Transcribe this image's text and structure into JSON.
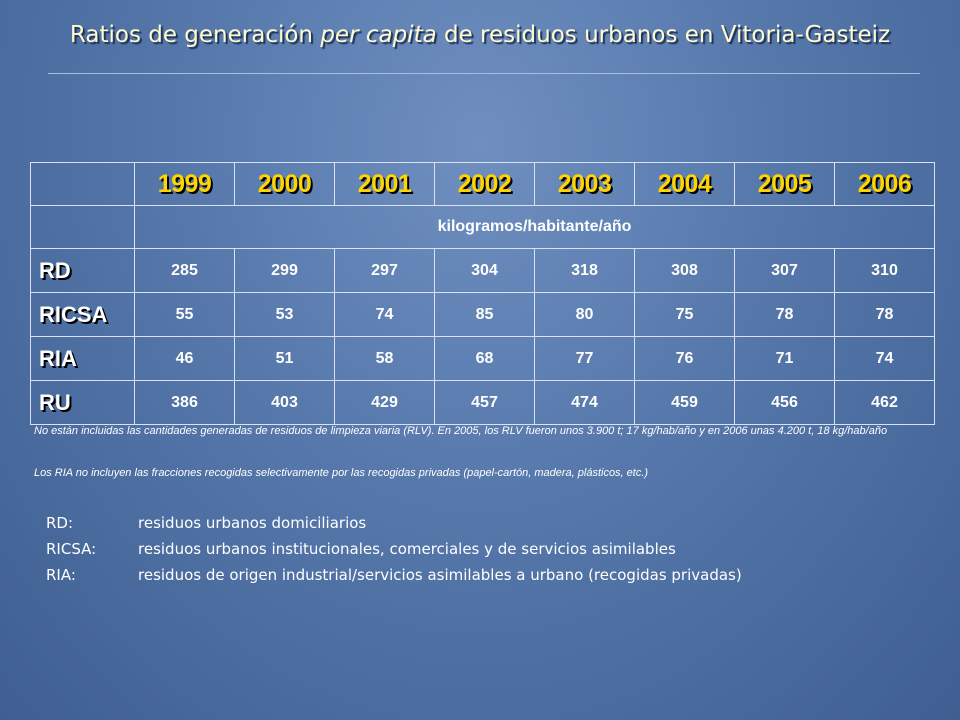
{
  "title": {
    "before": "Ratios de generación ",
    "italic": "per capita",
    "after": " de residuos urbanos en Vitoria-Gasteiz"
  },
  "table": {
    "years": [
      "1999",
      "2000",
      "2001",
      "2002",
      "2003",
      "2004",
      "2005",
      "2006"
    ],
    "unit": "kilogramos/habitante/año",
    "rows": [
      {
        "label": "RD",
        "values": [
          "285",
          "299",
          "297",
          "304",
          "318",
          "308",
          "307",
          "310"
        ]
      },
      {
        "label": "RICSA",
        "values": [
          "55",
          "53",
          "74",
          "85",
          "80",
          "75",
          "78",
          "78"
        ]
      },
      {
        "label": "RIA",
        "values": [
          "46",
          "51",
          "58",
          "68",
          "77",
          "76",
          "71",
          "74"
        ]
      },
      {
        "label": "RU",
        "values": [
          "386",
          "403",
          "429",
          "457",
          "474",
          "459",
          "456",
          "462"
        ]
      }
    ]
  },
  "notes": [
    "No están incluidas las cantidades generadas de residuos de limpieza viaria (RLV). En 2005, los RLV fueron unos 3.900 t; 17 kg/hab/año y en 2006 unas 4.200 t, 18 kg/hab/año",
    "Los RIA no incluyen las fracciones recogidas selectivamente por las recogidas privadas (papel-cartón,  madera, plásticos, etc.)"
  ],
  "legend": [
    {
      "key": "RD:",
      "desc": "residuos urbanos domiciliarios"
    },
    {
      "key": "RICSA:",
      "desc": "residuos urbanos institucionales, comerciales y de servicios asimilables"
    },
    {
      "key": "RIA:",
      "desc": "residuos de origen industrial/servicios asimilables a urbano (recogidas privadas)"
    }
  ],
  "colors": {
    "background": "#5577aa",
    "year_text": "#ffd400",
    "title_text": "#fffbd0"
  }
}
